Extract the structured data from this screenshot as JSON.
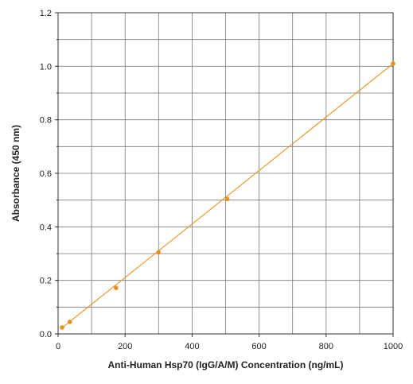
{
  "chart_data": {
    "type": "scatter",
    "title": "",
    "xlabel": "Anti-Human Hsp70 (IgG/A/M) Concentration (ng/mL)",
    "ylabel": "Absorbance (450 nm)",
    "xlim": [
      0,
      1000
    ],
    "ylim": [
      0,
      1.2
    ],
    "xticks": [
      0,
      200,
      400,
      600,
      800,
      1000
    ],
    "xtick_labels": [
      "0",
      "200",
      "400",
      "600",
      "800",
      "1000"
    ],
    "yticks": [
      0,
      0.2,
      0.4,
      0.6,
      0.8,
      1.0,
      1.2
    ],
    "ytick_labels": [
      "0.0",
      "0.2",
      "0.4",
      "0.6",
      "0.8",
      "1.0",
      "1.2"
    ],
    "x_gridlines": [
      100,
      200,
      300,
      400,
      500,
      600,
      700,
      800,
      900
    ],
    "y_gridlines": [
      0.1,
      0.2,
      0.3,
      0.4,
      0.5,
      0.6,
      0.7,
      0.8,
      0.9,
      1.0,
      1.1
    ],
    "grid": true,
    "legend": "none",
    "series": [
      {
        "x": [
          12,
          35,
          173,
          300,
          505,
          1000
        ],
        "y": [
          0.024,
          0.045,
          0.172,
          0.305,
          0.504,
          1.01
        ]
      }
    ],
    "fit_line": {
      "x": [
        12,
        1000
      ],
      "y": [
        0.023,
        1.01
      ]
    },
    "colors": {
      "series": "#e8901c",
      "grid": "#7a7a7a",
      "axis": "#333333"
    }
  }
}
